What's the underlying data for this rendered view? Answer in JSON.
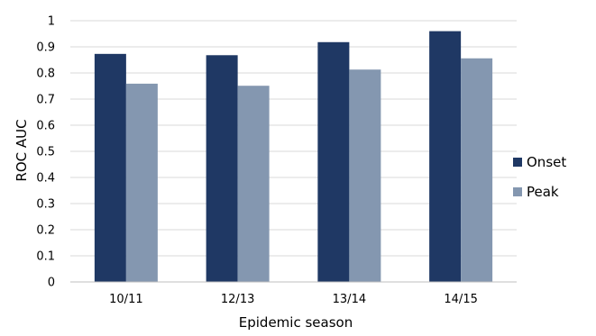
{
  "chart_data": {
    "type": "bar",
    "title": "",
    "xlabel": "Epidemic season",
    "ylabel": "ROC AUC",
    "categories": [
      "10/11",
      "12/13",
      "13/14",
      "14/15"
    ],
    "series": [
      {
        "name": "Onset",
        "color": "#1f3864",
        "values": [
          0.873,
          0.868,
          0.918,
          0.96
        ]
      },
      {
        "name": "Peak",
        "color": "#8497b0",
        "values": [
          0.759,
          0.751,
          0.813,
          0.856
        ]
      }
    ],
    "ylim": [
      0,
      1
    ],
    "y_ticks": [
      "0",
      "0.1",
      "0.2",
      "0.3",
      "0.4",
      "0.5",
      "0.6",
      "0.7",
      "0.8",
      "0.9",
      "1"
    ],
    "grid": true,
    "legend_position": "right"
  }
}
